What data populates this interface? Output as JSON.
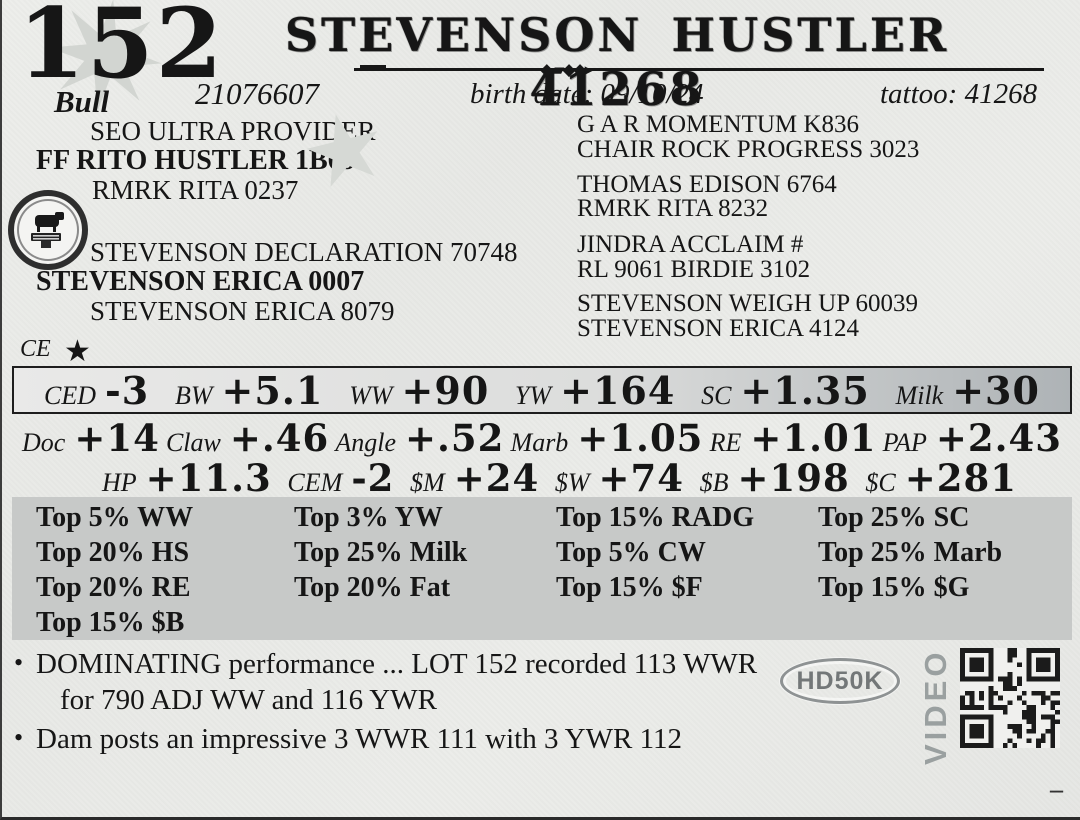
{
  "lot": {
    "number": "152",
    "sex": "Bull"
  },
  "title": "STEVENSON HUSTLER 41268",
  "ids": {
    "registration": "21076607",
    "birth_date": "birth date:  09/10/24",
    "tattoo": "tattoo: 41268"
  },
  "pedigree": {
    "left": [
      {
        "name": "SEO ULTRA PROVIDER"
      },
      {
        "name": "FF RITO HUSTLER 1B69"
      },
      {
        "name": "RMRK RITA 0237"
      },
      {
        "name": "STEVENSON DECLARATION 70748"
      },
      {
        "name": "STEVENSON ERICA 0007"
      },
      {
        "name": "STEVENSON ERICA 8079"
      }
    ],
    "right": [
      "G A R MOMENTUM K836",
      "CHAIR ROCK PROGRESS 3023",
      "THOMAS EDISON 6764",
      "RMRK RITA 8232",
      "JINDRA ACCLAIM #",
      "RL 9061 BIRDIE 3102",
      "STEVENSON WEIGH UP 60039",
      "STEVENSON ERICA 4124"
    ]
  },
  "ce": {
    "label": "CE",
    "star": "★"
  },
  "epd": {
    "row1": [
      {
        "label": "CED",
        "value": "-3"
      },
      {
        "label": "BW",
        "value": "+5.1"
      },
      {
        "label": "WW",
        "value": "+90"
      },
      {
        "label": "YW",
        "value": "+164"
      },
      {
        "label": "SC",
        "value": "+1.35"
      },
      {
        "label": "Milk",
        "value": "+30"
      }
    ],
    "row2": [
      {
        "label": "Doc",
        "value": "+14"
      },
      {
        "label": "Claw",
        "value": "+.46"
      },
      {
        "label": "Angle",
        "value": "+.52"
      },
      {
        "label": "Marb",
        "value": "+1.05"
      },
      {
        "label": "RE",
        "value": "+1.01"
      },
      {
        "label": "PAP",
        "value": "+2.43"
      }
    ],
    "row3": [
      {
        "label": "HP",
        "value": "+11.3"
      },
      {
        "label": "CEM",
        "value": "-2"
      },
      {
        "label": "$M",
        "value": "+24"
      },
      {
        "label": "$W",
        "value": "+74"
      },
      {
        "label": "$B",
        "value": "+198"
      },
      {
        "label": "$C",
        "value": "+281"
      }
    ]
  },
  "percentiles": [
    "Top 5% WW",
    "Top 3% YW",
    "Top 15% RADG",
    "Top 25% SC",
    "Top 20% HS",
    "Top 25% Milk",
    "Top 5% CW",
    "Top 25% Marb",
    "Top 20% RE",
    "Top 20% Fat",
    "Top 15% $F",
    "Top 15% $G",
    "Top 15% $B"
  ],
  "notes": {
    "bullet_char": "•",
    "items": [
      "DOMINATING performance ... LOT 152 recorded 113 WWR for 790 ADJ WW and 116 YWR",
      "Dam posts an impressive 3 WWR 111 with 3 YWR 112"
    ]
  },
  "badges": {
    "hd50k": "HD50K",
    "video": "VIDEO"
  },
  "footer": {
    "dash": "–"
  },
  "colors": {
    "text": "#161616",
    "paper": "#eaebe8",
    "percentile_bg": "#c7c9c8",
    "band_dark": "#aeb3b6",
    "badge_gray": "#8e9293"
  }
}
